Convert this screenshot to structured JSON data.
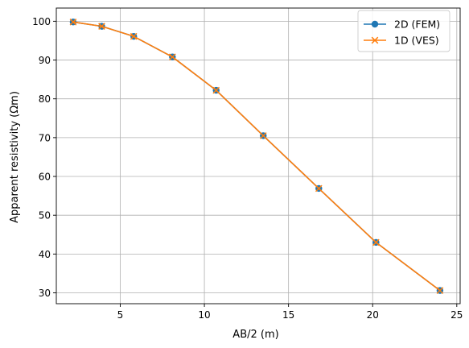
{
  "chart_data": {
    "type": "line",
    "xlabel": "AB/2 (m)",
    "ylabel": "Apparent resistivity (Ωm)",
    "xlim": [
      1.2,
      25.2
    ],
    "ylim": [
      27.2,
      103.4
    ],
    "xticks": [
      5,
      10,
      15,
      20,
      25
    ],
    "yticks": [
      30,
      40,
      50,
      60,
      70,
      80,
      90,
      100
    ],
    "grid": true,
    "legend_position": "top-right",
    "series": [
      {
        "name": "2D (FEM)",
        "color": "#1f77b4",
        "marker": "circle",
        "x": [
          2.2,
          3.9,
          5.8,
          8.1,
          10.7,
          13.5,
          16.8,
          20.2,
          24.0
        ],
        "y": [
          99.8,
          98.7,
          96.1,
          90.8,
          82.2,
          70.5,
          56.9,
          43.0,
          30.6
        ]
      },
      {
        "name": "1D (VES)",
        "color": "#ff7f0e",
        "marker": "x",
        "x": [
          2.2,
          3.9,
          5.8,
          8.1,
          10.7,
          13.5,
          16.8,
          20.2,
          24.0
        ],
        "y": [
          99.8,
          98.7,
          96.1,
          90.8,
          82.2,
          70.5,
          56.9,
          43.0,
          30.6
        ]
      }
    ]
  }
}
